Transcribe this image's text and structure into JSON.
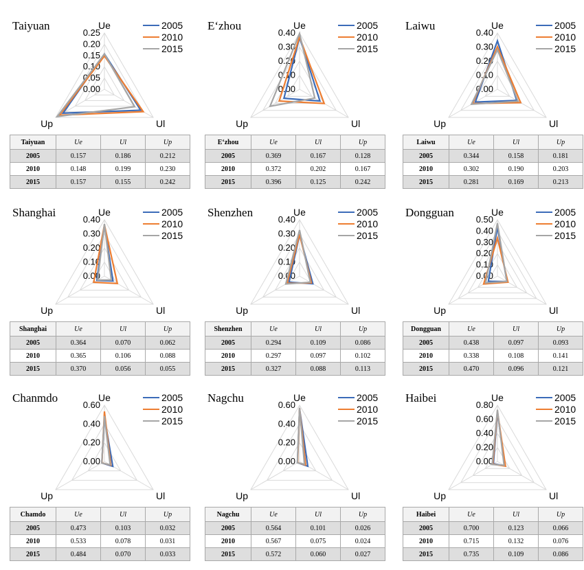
{
  "legend": [
    {
      "label": "2005",
      "color": "#3b6bb8"
    },
    {
      "label": "2010",
      "color": "#ed7d31"
    },
    {
      "label": "2015",
      "color": "#a5a5a5"
    }
  ],
  "axis_labels": {
    "top": "Ue",
    "right": "Ul",
    "left": "Up"
  },
  "column_headers": [
    "Ue",
    "Ul",
    "Up"
  ],
  "chart_data": [
    {
      "type": "radar",
      "title": "Taiyuan",
      "table_header": "Taiyuan",
      "axes": [
        "Ue",
        "Ul",
        "Up"
      ],
      "ticks": [
        "0.25",
        "0.20",
        "0.15",
        "0.10",
        "0.05",
        "0.00"
      ],
      "tick_values": [
        0.25,
        0.2,
        0.15,
        0.1,
        0.05,
        0.0
      ],
      "max": 0.25,
      "series": [
        {
          "name": "2005",
          "values": [
            0.157,
            0.186,
            0.212
          ],
          "display": [
            "0.157",
            "0.186",
            "0.212"
          ]
        },
        {
          "name": "2010",
          "values": [
            0.148,
            0.199,
            0.23
          ],
          "display": [
            "0.148",
            "0.199",
            "0.230"
          ]
        },
        {
          "name": "2015",
          "values": [
            0.157,
            0.155,
            0.242
          ],
          "display": [
            "0.157",
            "0.155",
            "0.242"
          ]
        }
      ]
    },
    {
      "type": "radar",
      "title": "E‘zhou",
      "table_header": "E‘zhou",
      "axes": [
        "Ue",
        "Ul",
        "Up"
      ],
      "ticks": [
        "0.40",
        "0.30",
        "0.20",
        "0.10",
        "0.00"
      ],
      "tick_values": [
        0.4,
        0.3,
        0.2,
        0.1,
        0.0
      ],
      "max": 0.4,
      "series": [
        {
          "name": "2005",
          "values": [
            0.369,
            0.167,
            0.128
          ],
          "display": [
            "0.369",
            "0.167",
            "0.128"
          ]
        },
        {
          "name": "2010",
          "values": [
            0.372,
            0.202,
            0.167
          ],
          "display": [
            "0.372",
            "0.202",
            "0.167"
          ]
        },
        {
          "name": "2015",
          "values": [
            0.396,
            0.125,
            0.242
          ],
          "display": [
            "0.396",
            "0.125",
            "0.242"
          ]
        }
      ]
    },
    {
      "type": "radar",
      "title": "Laiwu",
      "table_header": "Laiwu",
      "axes": [
        "Ue",
        "Ul",
        "Up"
      ],
      "ticks": [
        "0.40",
        "0.30",
        "0.20",
        "0.10",
        "0.00"
      ],
      "tick_values": [
        0.4,
        0.3,
        0.2,
        0.1,
        0.0
      ],
      "max": 0.4,
      "series": [
        {
          "name": "2005",
          "values": [
            0.344,
            0.158,
            0.181
          ],
          "display": [
            "0.344",
            "0.158",
            "0.181"
          ]
        },
        {
          "name": "2010",
          "values": [
            0.302,
            0.19,
            0.203
          ],
          "display": [
            "0.302",
            "0.190",
            "0.203"
          ]
        },
        {
          "name": "2015",
          "values": [
            0.281,
            0.169,
            0.213
          ],
          "display": [
            "0.281",
            "0.169",
            "0.213"
          ]
        }
      ]
    },
    {
      "type": "radar",
      "title": "Shanghai",
      "table_header": "Shanghai",
      "axes": [
        "Ue",
        "Ul",
        "Up"
      ],
      "ticks": [
        "0.40",
        "0.30",
        "0.20",
        "0.10",
        "0.00"
      ],
      "tick_values": [
        0.4,
        0.3,
        0.2,
        0.1,
        0.0
      ],
      "max": 0.4,
      "series": [
        {
          "name": "2005",
          "values": [
            0.364,
            0.07,
            0.062
          ],
          "display": [
            "0.364",
            "0.070",
            "0.062"
          ]
        },
        {
          "name": "2010",
          "values": [
            0.365,
            0.106,
            0.088
          ],
          "display": [
            "0.365",
            "0.106",
            "0.088"
          ]
        },
        {
          "name": "2015",
          "values": [
            0.37,
            0.056,
            0.055
          ],
          "display": [
            "0.370",
            "0.056",
            "0.055"
          ]
        }
      ]
    },
    {
      "type": "radar",
      "title": "Shenzhen",
      "table_header": "Shenzhen",
      "axes": [
        "Ue",
        "Ul",
        "Up"
      ],
      "ticks": [
        "0.40",
        "0.30",
        "0.20",
        "0.10",
        "0.00"
      ],
      "tick_values": [
        0.4,
        0.3,
        0.2,
        0.1,
        0.0
      ],
      "max": 0.4,
      "series": [
        {
          "name": "2005",
          "values": [
            0.294,
            0.109,
            0.086
          ],
          "display": [
            "0.294",
            "0.109",
            "0.086"
          ]
        },
        {
          "name": "2010",
          "values": [
            0.297,
            0.097,
            0.102
          ],
          "display": [
            "0.297",
            "0.097",
            "0.102"
          ]
        },
        {
          "name": "2015",
          "values": [
            0.327,
            0.088,
            0.113
          ],
          "display": [
            "0.327",
            "0.088",
            "0.113"
          ]
        }
      ]
    },
    {
      "type": "radar",
      "title": "Dongguan",
      "table_header": "Dongguan",
      "axes": [
        "Ue",
        "Ul",
        "Up"
      ],
      "ticks": [
        "0.50",
        "0.40",
        "0.30",
        "0.20",
        "0.10",
        "0.00"
      ],
      "tick_values": [
        0.5,
        0.4,
        0.3,
        0.2,
        0.1,
        0.0
      ],
      "max": 0.5,
      "series": [
        {
          "name": "2005",
          "values": [
            0.438,
            0.097,
            0.093
          ],
          "display": [
            "0.438",
            "0.097",
            "0.093"
          ]
        },
        {
          "name": "2010",
          "values": [
            0.338,
            0.108,
            0.141
          ],
          "display": [
            "0.338",
            "0.108",
            "0.141"
          ]
        },
        {
          "name": "2015",
          "values": [
            0.47,
            0.096,
            0.121
          ],
          "display": [
            "0.470",
            "0.096",
            "0.121"
          ]
        }
      ]
    },
    {
      "type": "radar",
      "title": "Chanmdo",
      "table_header": "Chamdo",
      "axes": [
        "Ue",
        "Ul",
        "Up"
      ],
      "ticks": [
        "0.60",
        "0.40",
        "0.20",
        "0.00"
      ],
      "tick_values": [
        0.6,
        0.4,
        0.2,
        0.0
      ],
      "max": 0.6,
      "series": [
        {
          "name": "2005",
          "values": [
            0.473,
            0.103,
            0.032
          ],
          "display": [
            "0.473",
            "0.103",
            "0.032"
          ]
        },
        {
          "name": "2010",
          "values": [
            0.533,
            0.078,
            0.031
          ],
          "display": [
            "0.533",
            "0.078",
            "0.031"
          ]
        },
        {
          "name": "2015",
          "values": [
            0.484,
            0.07,
            0.033
          ],
          "display": [
            "0.484",
            "0.070",
            "0.033"
          ]
        }
      ]
    },
    {
      "type": "radar",
      "title": "Nagchu",
      "table_header": "Nagchu",
      "axes": [
        "Ue",
        "Ul",
        "Up"
      ],
      "ticks": [
        "0.60",
        "0.40",
        "0.20",
        "0.00"
      ],
      "tick_values": [
        0.6,
        0.4,
        0.2,
        0.0
      ],
      "max": 0.6,
      "series": [
        {
          "name": "2005",
          "values": [
            0.564,
            0.101,
            0.026
          ],
          "display": [
            "0.564",
            "0.101",
            "0.026"
          ]
        },
        {
          "name": "2010",
          "values": [
            0.567,
            0.075,
            0.024
          ],
          "display": [
            "0.567",
            "0.075",
            "0.024"
          ]
        },
        {
          "name": "2015",
          "values": [
            0.572,
            0.06,
            0.027
          ],
          "display": [
            "0.572",
            "0.060",
            "0.027"
          ]
        }
      ]
    },
    {
      "type": "radar",
      "title": "Haibei",
      "table_header": "Haibei",
      "axes": [
        "Ue",
        "Ul",
        "Up"
      ],
      "ticks": [
        "0.80",
        "0.60",
        "0.40",
        "0.20",
        "0.00"
      ],
      "tick_values": [
        0.8,
        0.6,
        0.4,
        0.2,
        0.0
      ],
      "max": 0.8,
      "series": [
        {
          "name": "2005",
          "values": [
            0.7,
            0.123,
            0.066
          ],
          "display": [
            "0.700",
            "0.123",
            "0.066"
          ]
        },
        {
          "name": "2010",
          "values": [
            0.715,
            0.132,
            0.076
          ],
          "display": [
            "0.715",
            "0.132",
            "0.076"
          ]
        },
        {
          "name": "2015",
          "values": [
            0.735,
            0.109,
            0.086
          ],
          "display": [
            "0.735",
            "0.109",
            "0.086"
          ]
        }
      ]
    }
  ]
}
